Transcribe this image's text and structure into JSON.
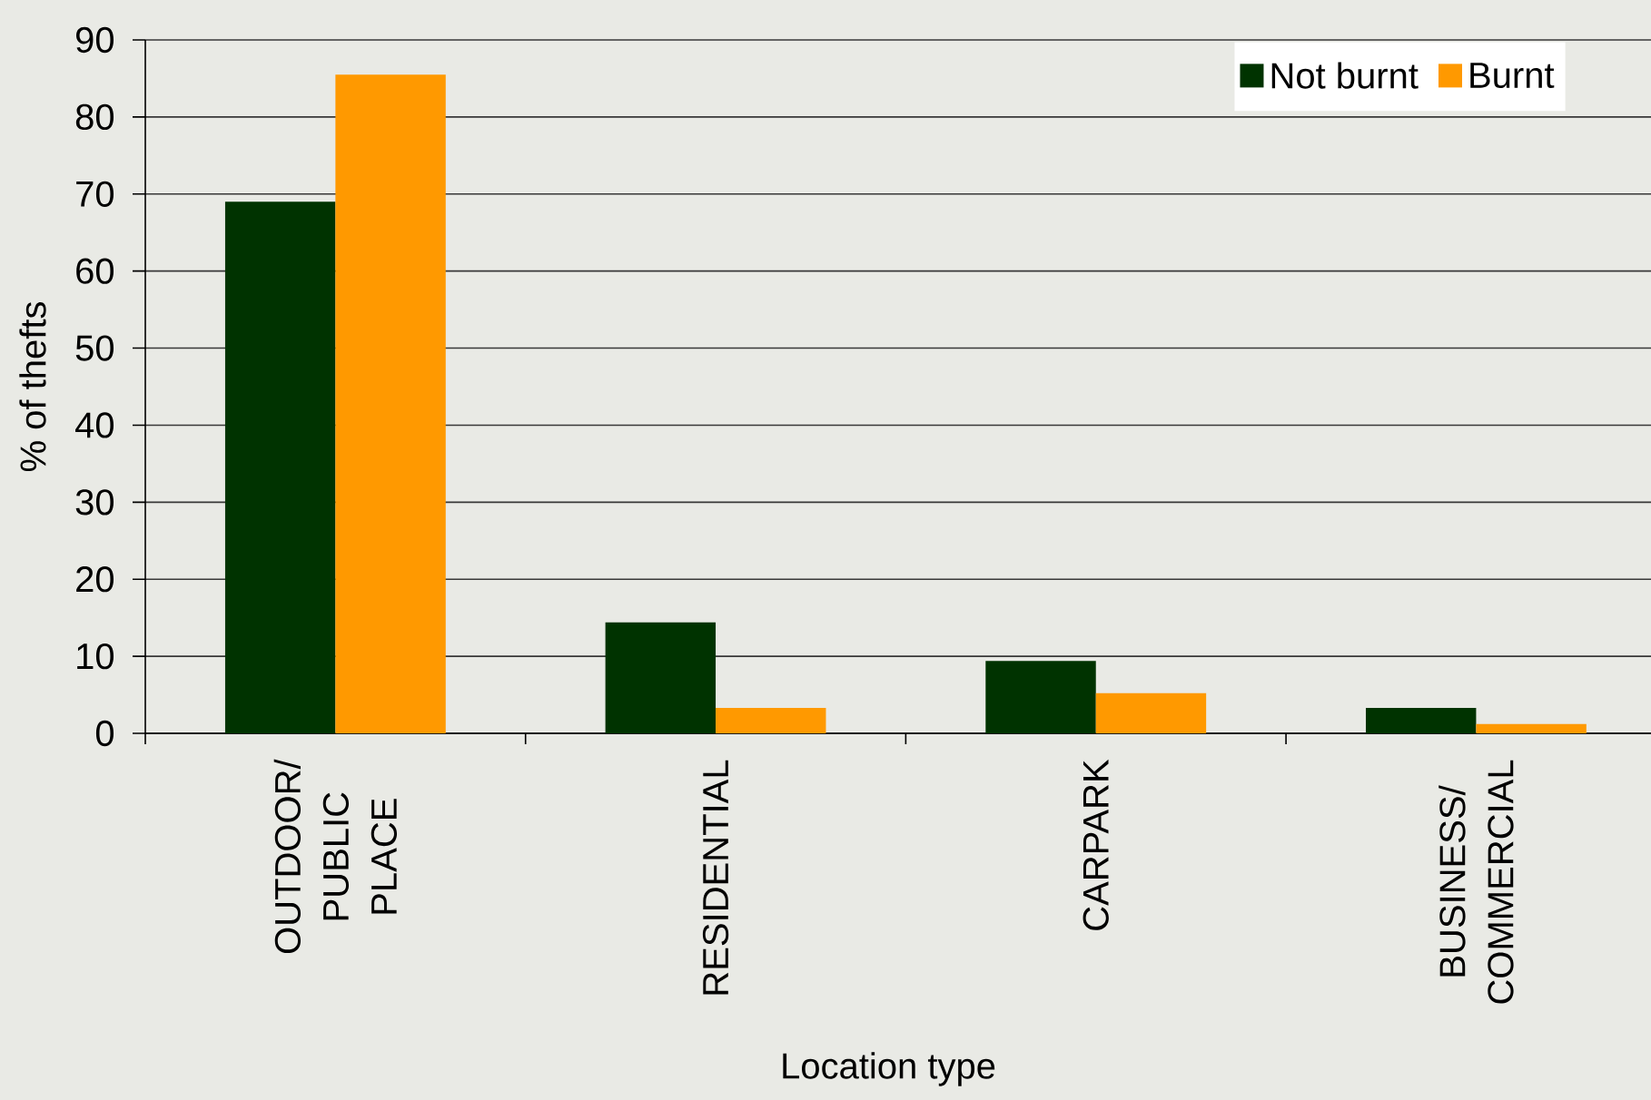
{
  "chart_data": {
    "type": "bar",
    "xlabel": "Location type",
    "ylabel": "% of thefts",
    "categories": [
      "OUTDOOR/ PUBLIC PLACE",
      "RESIDENTIAL",
      "CARPARK",
      "BUSINESS/ COMMERCIAL"
    ],
    "series": [
      {
        "name": "Not burnt",
        "color": "#003300",
        "values": [
          69,
          14.4,
          9.4,
          3.3
        ]
      },
      {
        "name": "Burnt",
        "color": "#ff9900",
        "values": [
          85.5,
          3.3,
          5.2,
          1.2
        ]
      }
    ],
    "ylim": [
      0,
      90
    ],
    "yticks": [
      0,
      10,
      20,
      30,
      40,
      50,
      60,
      70,
      80,
      90
    ],
    "grid": "y",
    "legend": "top right"
  }
}
